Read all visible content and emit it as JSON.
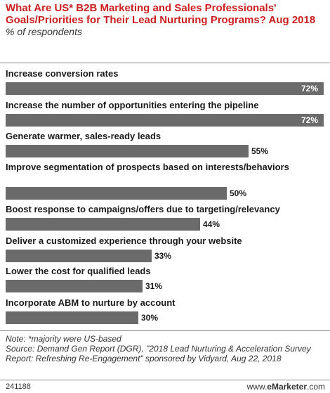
{
  "chart_data": {
    "type": "bar",
    "orientation": "horizontal",
    "title": "What Are US* B2B Marketing and Sales Professionals' Goals/Priorities for Their Lead Nurturing Programs? Aug 2018",
    "subtitle": "% of respondents",
    "categories": [
      "Increase conversion rates",
      "Increase the number of opportunities entering the pipeline",
      "Generate warmer, sales-ready leads",
      "Improve segmentation of prospects based on interests/behaviors",
      "Boost response to campaigns/offers due to targeting/relevancy",
      "Deliver a customized experience through your website",
      "Lower the cost for qualified leads",
      "Incorporate ABM to nurture by account"
    ],
    "values": [
      72,
      72,
      55,
      50,
      44,
      33,
      31,
      30
    ],
    "value_labels": [
      "72%",
      "72%",
      "55%",
      "50%",
      "44%",
      "33%",
      "31%",
      "30%"
    ],
    "bar_color": "#6b6b6b",
    "title_color": "#cc1f1f",
    "xlim": [
      0,
      72
    ],
    "grid": false,
    "legend": "none"
  },
  "footer": {
    "note": "Note: *majority were US-based",
    "source": "Source: Demand Gen Report (DGR), \"2018 Lead Nurturing & Acceleration Survey Report: Refreshing Re-Engagement\" sponsored by Vidyard, Aug 22, 2018",
    "code": "241188",
    "brand_prefix": "www.",
    "brand_name": "eMarketer",
    "brand_suffix": ".com"
  }
}
